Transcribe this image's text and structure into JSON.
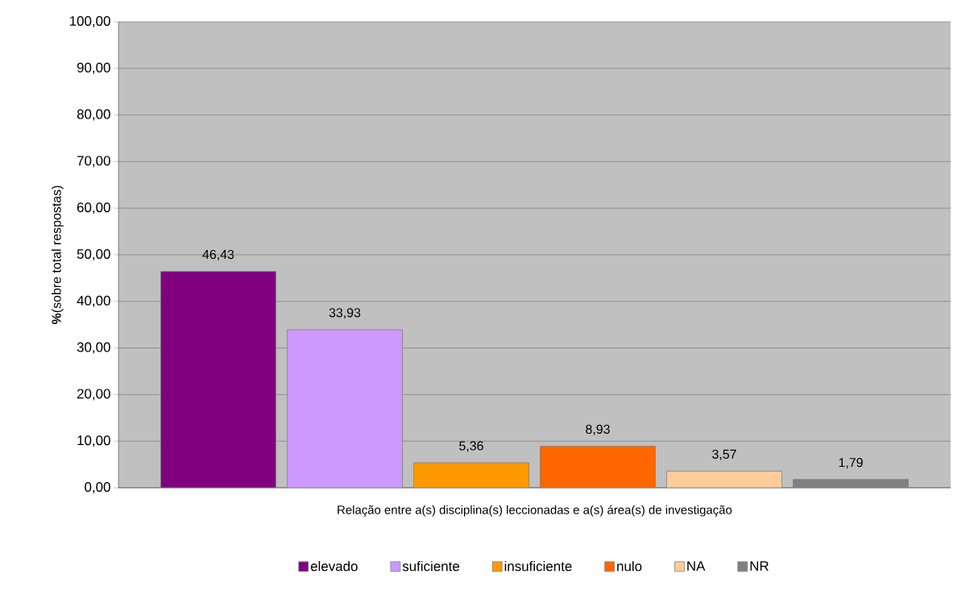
{
  "chart_data": {
    "type": "bar",
    "ylabel": "**%**(sobre total respostas)",
    "categories": [
      "Relação entre a(s) disciplina(s) leccionadas e a(s) área(s) de investigação"
    ],
    "series": [
      {
        "name": "elevado",
        "color": "#800080",
        "values": [
          46.43
        ],
        "value_labels": [
          "46,43"
        ]
      },
      {
        "name": "suficiente",
        "color": "#cc99ff",
        "values": [
          33.93
        ],
        "value_labels": [
          "33,93"
        ]
      },
      {
        "name": "insuficiente",
        "color": "#ff9900",
        "values": [
          5.36
        ],
        "value_labels": [
          "5,36"
        ]
      },
      {
        "name": "nulo",
        "color": "#ff6600",
        "values": [
          8.93
        ],
        "value_labels": [
          "8,93"
        ]
      },
      {
        "name": "NA",
        "color": "#ffcc99",
        "values": [
          3.57
        ],
        "value_labels": [
          "3,57"
        ]
      },
      {
        "name": "NR",
        "color": "#808080",
        "values": [
          1.79
        ],
        "value_labels": [
          "1,79"
        ]
      }
    ],
    "ylim": [
      0,
      100
    ],
    "yticks": [
      {
        "value": 0,
        "label": "0,00"
      },
      {
        "value": 10,
        "label": "10,00"
      },
      {
        "value": 20,
        "label": "20,00"
      },
      {
        "value": 30,
        "label": "30,00"
      },
      {
        "value": 40,
        "label": "40,00"
      },
      {
        "value": 50,
        "label": "50,00"
      },
      {
        "value": 60,
        "label": "60,00"
      },
      {
        "value": 70,
        "label": "70,00"
      },
      {
        "value": 80,
        "label": "80,00"
      },
      {
        "value": 90,
        "label": "90,00"
      },
      {
        "value": 100,
        "label": "100,00"
      }
    ],
    "grid": "y",
    "legend": "bottom"
  }
}
